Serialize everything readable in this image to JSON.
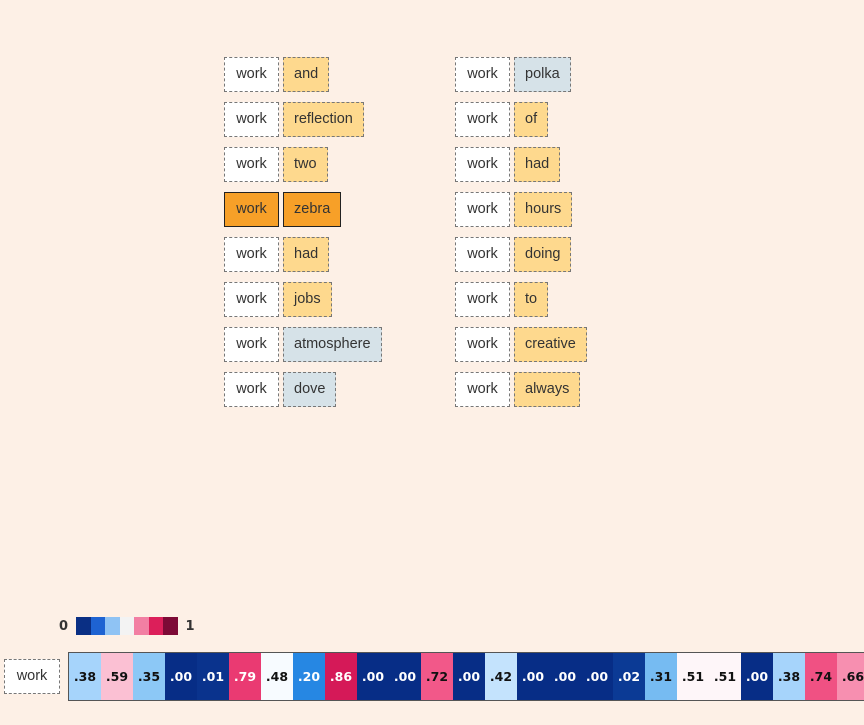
{
  "left_pairs": [
    {
      "key": "work",
      "value": "and",
      "shade": "hi"
    },
    {
      "key": "work",
      "value": "reflection",
      "shade": "hi"
    },
    {
      "key": "work",
      "value": "two",
      "shade": "hi"
    },
    {
      "key": "work",
      "value": "zebra",
      "shade": "sel"
    },
    {
      "key": "work",
      "value": "had",
      "shade": "hi"
    },
    {
      "key": "work",
      "value": "jobs",
      "shade": "hi"
    },
    {
      "key": "work",
      "value": "atmosphere",
      "shade": "lo"
    },
    {
      "key": "work",
      "value": "dove",
      "shade": "lo"
    }
  ],
  "right_pairs": [
    {
      "key": "work",
      "value": "polka",
      "shade": "lo"
    },
    {
      "key": "work",
      "value": "of",
      "shade": "hi"
    },
    {
      "key": "work",
      "value": "had",
      "shade": "hi"
    },
    {
      "key": "work",
      "value": "hours",
      "shade": "hi"
    },
    {
      "key": "work",
      "value": "doing",
      "shade": "hi"
    },
    {
      "key": "work",
      "value": "to",
      "shade": "hi"
    },
    {
      "key": "work",
      "value": "creative",
      "shade": "hi"
    },
    {
      "key": "work",
      "value": "always",
      "shade": "hi"
    }
  ],
  "legend": {
    "min_label": "0",
    "max_label": "1",
    "colors": [
      "#0a2f84",
      "#1e63d2",
      "#8fc3f4",
      "#f3f3f3",
      "#f27fa3",
      "#dc1f5a",
      "#7d0a36"
    ]
  },
  "query_token": "work",
  "scores": [
    {
      "label": ".38",
      "value": 0.38,
      "bg": "#a6d4fb",
      "fg": "#111"
    },
    {
      "label": ".59",
      "value": 0.59,
      "bg": "#fbc0d3",
      "fg": "#111"
    },
    {
      "label": ".35",
      "value": 0.35,
      "bg": "#8cc8f6",
      "fg": "#111"
    },
    {
      "label": ".00",
      "value": 0.0,
      "bg": "#072d86",
      "fg": "#fff"
    },
    {
      "label": ".01",
      "value": 0.01,
      "bg": "#0a338d",
      "fg": "#fff"
    },
    {
      "label": ".79",
      "value": 0.79,
      "bg": "#ea3a72",
      "fg": "#fff"
    },
    {
      "label": ".48",
      "value": 0.48,
      "bg": "#f7fbff",
      "fg": "#111"
    },
    {
      "label": ".20",
      "value": 0.2,
      "bg": "#2687e3",
      "fg": "#fff"
    },
    {
      "label": ".86",
      "value": 0.86,
      "bg": "#d51958",
      "fg": "#fff"
    },
    {
      "label": ".00",
      "value": 0.0,
      "bg": "#072d86",
      "fg": "#fff"
    },
    {
      "label": ".00",
      "value": 0.0,
      "bg": "#072d86",
      "fg": "#fff"
    },
    {
      "label": ".72",
      "value": 0.72,
      "bg": "#f25889",
      "fg": "#111"
    },
    {
      "label": ".00",
      "value": 0.0,
      "bg": "#072d86",
      "fg": "#fff"
    },
    {
      "label": ".42",
      "value": 0.42,
      "bg": "#c4e3fd",
      "fg": "#111"
    },
    {
      "label": ".00",
      "value": 0.0,
      "bg": "#072d86",
      "fg": "#fff"
    },
    {
      "label": ".00",
      "value": 0.0,
      "bg": "#072d86",
      "fg": "#fff"
    },
    {
      "label": ".00",
      "value": 0.0,
      "bg": "#072d86",
      "fg": "#fff"
    },
    {
      "label": ".02",
      "value": 0.02,
      "bg": "#0b3a95",
      "fg": "#fff"
    },
    {
      "label": ".31",
      "value": 0.31,
      "bg": "#76bbf2",
      "fg": "#111"
    },
    {
      "label": ".51",
      "value": 0.51,
      "bg": "#fef6f9",
      "fg": "#111"
    },
    {
      "label": ".51",
      "value": 0.51,
      "bg": "#fef6f9",
      "fg": "#111"
    },
    {
      "label": ".00",
      "value": 0.0,
      "bg": "#072d86",
      "fg": "#fff"
    },
    {
      "label": ".38",
      "value": 0.38,
      "bg": "#a6d4fb",
      "fg": "#111"
    },
    {
      "label": ".74",
      "value": 0.74,
      "bg": "#f05183",
      "fg": "#111"
    },
    {
      "label": ".66",
      "value": 0.66,
      "bg": "#f78fb0",
      "fg": "#111"
    }
  ]
}
